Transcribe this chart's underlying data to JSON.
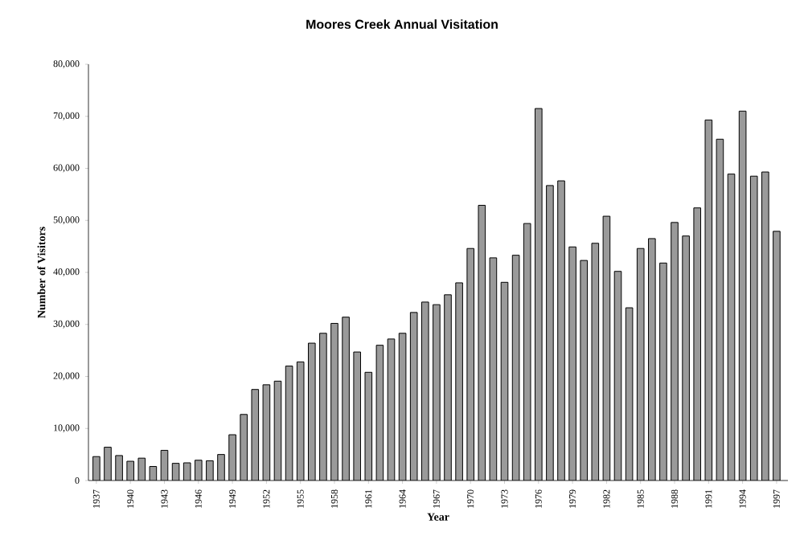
{
  "chart_data": {
    "type": "bar",
    "title": "Moores Creek Annual Visitation",
    "xlabel": "Year",
    "ylabel": "Number of Visitors",
    "categories": [
      "1937",
      null,
      null,
      "1940",
      null,
      null,
      "1943",
      null,
      null,
      "1946",
      null,
      null,
      "1949",
      null,
      null,
      "1952",
      null,
      null,
      "1955",
      null,
      null,
      "1958",
      null,
      null,
      "1961",
      null,
      null,
      "1964",
      null,
      null,
      "1967",
      null,
      null,
      "1970",
      null,
      null,
      "1973",
      null,
      null,
      "1976",
      null,
      null,
      "1979",
      null,
      null,
      "1982",
      null,
      null,
      "1985",
      null,
      null,
      "1988",
      null,
      null,
      "1991",
      null,
      null,
      "1994",
      null,
      null,
      "1997"
    ],
    "values": [
      4600,
      6400,
      4800,
      3700,
      4300,
      2700,
      5800,
      3300,
      3400,
      3900,
      3800,
      5000,
      8800,
      12700,
      17500,
      18400,
      19100,
      22000,
      22800,
      26400,
      28300,
      30200,
      31400,
      24700,
      20800,
      26000,
      27200,
      28300,
      32300,
      34300,
      33800,
      35700,
      38000,
      44600,
      52900,
      42800,
      38100,
      43300,
      49400,
      71500,
      56700,
      57600,
      44900,
      42300,
      45600,
      50800,
      40200,
      33200,
      44600,
      46500,
      41800,
      49600,
      47000,
      52400,
      69300,
      65600,
      58900,
      71000,
      58500,
      59300,
      47900
    ],
    "color": "#9a9a9a",
    "ylim": [
      0,
      80000
    ],
    "yticks": [
      {
        "value": 0,
        "label": "0"
      },
      {
        "value": 10000,
        "label": "10,000"
      },
      {
        "value": 20000,
        "label": "20,000"
      },
      {
        "value": 30000,
        "label": "30,000"
      },
      {
        "value": 40000,
        "label": "40,000"
      },
      {
        "value": 50000,
        "label": "50,000"
      },
      {
        "value": 60000,
        "label": "60,000"
      },
      {
        "value": 70000,
        "label": "70,000"
      },
      {
        "value": 80000,
        "label": "80,000"
      }
    ]
  }
}
